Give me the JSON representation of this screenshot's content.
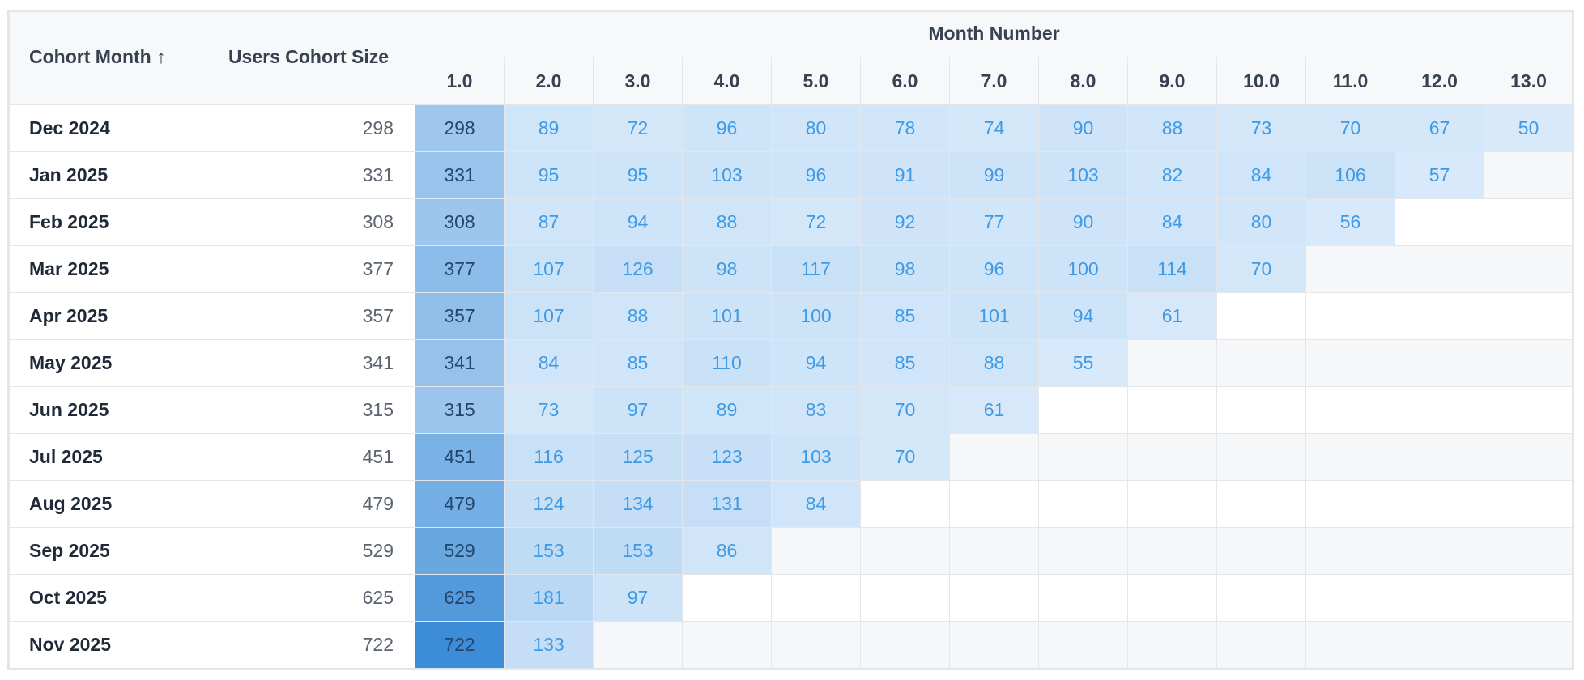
{
  "table": {
    "headers": {
      "cohort_month": "Cohort Month ↑",
      "cohort_size": "Users Cohort Size",
      "month_number": "Month Number",
      "months": [
        "1.0",
        "2.0",
        "3.0",
        "4.0",
        "5.0",
        "6.0",
        "7.0",
        "8.0",
        "9.0",
        "10.0",
        "11.0",
        "12.0",
        "13.0"
      ]
    },
    "rows": [
      {
        "month": "Dec 2024",
        "size": 298,
        "values": [
          298,
          89,
          72,
          96,
          80,
          78,
          74,
          90,
          88,
          73,
          70,
          67,
          50
        ]
      },
      {
        "month": "Jan 2025",
        "size": 331,
        "values": [
          331,
          95,
          95,
          103,
          96,
          91,
          99,
          103,
          82,
          84,
          106,
          57
        ]
      },
      {
        "month": "Feb 2025",
        "size": 308,
        "values": [
          308,
          87,
          94,
          88,
          72,
          92,
          77,
          90,
          84,
          80,
          56
        ]
      },
      {
        "month": "Mar 2025",
        "size": 377,
        "values": [
          377,
          107,
          126,
          98,
          117,
          98,
          96,
          100,
          114,
          70
        ]
      },
      {
        "month": "Apr 2025",
        "size": 357,
        "values": [
          357,
          107,
          88,
          101,
          100,
          85,
          101,
          94,
          61
        ]
      },
      {
        "month": "May 2025",
        "size": 341,
        "values": [
          341,
          84,
          85,
          110,
          94,
          85,
          88,
          55
        ]
      },
      {
        "month": "Jun 2025",
        "size": 315,
        "values": [
          315,
          73,
          97,
          89,
          83,
          70,
          61
        ]
      },
      {
        "month": "Jul 2025",
        "size": 451,
        "values": [
          451,
          116,
          125,
          123,
          103,
          70
        ]
      },
      {
        "month": "Aug 2025",
        "size": 479,
        "values": [
          479,
          124,
          134,
          131,
          84
        ]
      },
      {
        "month": "Sep 2025",
        "size": 529,
        "values": [
          529,
          153,
          153,
          86
        ]
      },
      {
        "month": "Oct 2025",
        "size": 625,
        "values": [
          625,
          181,
          97
        ]
      },
      {
        "month": "Nov 2025",
        "size": 722,
        "values": [
          722,
          133
        ]
      }
    ]
  }
}
